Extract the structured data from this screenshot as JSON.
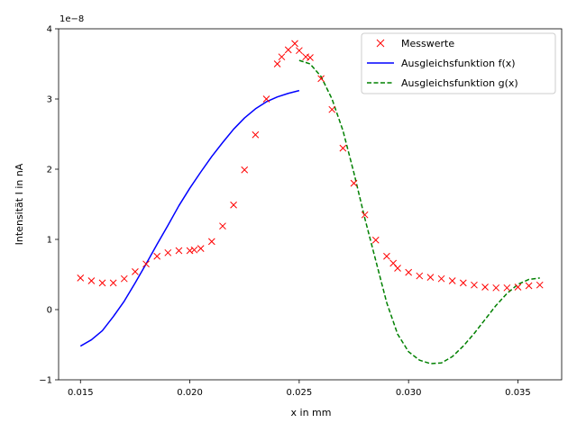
{
  "chart_data": {
    "type": "line",
    "xlabel": "x in mm",
    "ylabel": "Intensität I in nA",
    "offset_text": "1e−8",
    "xlim": [
      0.014,
      0.037
    ],
    "ylim": [
      -1.0,
      4.0
    ],
    "xticks": [
      0.015,
      0.02,
      0.025,
      0.03,
      0.035
    ],
    "xtick_labels": [
      "0.015",
      "0.020",
      "0.025",
      "0.030",
      "0.035"
    ],
    "yticks": [
      -1,
      0,
      1,
      2,
      3,
      4
    ],
    "ytick_labels": [
      "−1",
      "0",
      "1",
      "2",
      "3",
      "4"
    ],
    "grid": false,
    "legend_position": "top-right",
    "legend": [
      "Messwerte",
      "Ausgleichsfunktion f(x)",
      "Ausgleichsfunktion g(x)"
    ],
    "colors": {
      "measured": "#ff0000",
      "f": "#0000ff",
      "g": "#008000"
    },
    "measured": {
      "name": "Messwerte",
      "x": [
        0.015,
        0.0155,
        0.016,
        0.0165,
        0.017,
        0.0175,
        0.018,
        0.0185,
        0.019,
        0.0195,
        0.02,
        0.0202,
        0.0205,
        0.021,
        0.0215,
        0.022,
        0.0225,
        0.023,
        0.0235,
        0.024,
        0.0242,
        0.0245,
        0.0248,
        0.025,
        0.0253,
        0.0255,
        0.026,
        0.0265,
        0.027,
        0.0275,
        0.028,
        0.0285,
        0.029,
        0.0293,
        0.0295,
        0.03,
        0.0305,
        0.031,
        0.0315,
        0.032,
        0.0325,
        0.033,
        0.0335,
        0.034,
        0.0345,
        0.035,
        0.0355,
        0.036
      ],
      "y": [
        0.45,
        0.41,
        0.38,
        0.38,
        0.44,
        0.54,
        0.65,
        0.76,
        0.81,
        0.84,
        0.84,
        0.85,
        0.87,
        0.97,
        1.19,
        1.49,
        1.99,
        2.49,
        3.0,
        3.5,
        3.6,
        3.7,
        3.79,
        3.69,
        3.6,
        3.59,
        3.29,
        2.85,
        2.3,
        1.8,
        1.35,
        0.99,
        0.76,
        0.66,
        0.59,
        0.53,
        0.48,
        0.46,
        0.44,
        0.41,
        0.38,
        0.35,
        0.32,
        0.31,
        0.31,
        0.32,
        0.34,
        0.35
      ]
    },
    "fit_f": {
      "name": "Ausgleichsfunktion f(x)",
      "x": [
        0.015,
        0.0155,
        0.016,
        0.0165,
        0.017,
        0.0175,
        0.018,
        0.0185,
        0.019,
        0.0195,
        0.02,
        0.0205,
        0.021,
        0.0215,
        0.022,
        0.0225,
        0.023,
        0.0235,
        0.024,
        0.0245,
        0.025
      ],
      "y": [
        -0.52,
        -0.43,
        -0.3,
        -0.1,
        0.12,
        0.38,
        0.65,
        0.93,
        1.2,
        1.48,
        1.73,
        1.96,
        2.18,
        2.38,
        2.57,
        2.73,
        2.86,
        2.96,
        3.03,
        3.08,
        3.12
      ]
    },
    "fit_g": {
      "name": "Ausgleichsfunktion g(x)",
      "x": [
        0.025,
        0.0255,
        0.026,
        0.0265,
        0.027,
        0.0275,
        0.028,
        0.0285,
        0.029,
        0.0295,
        0.03,
        0.0305,
        0.031,
        0.0315,
        0.032,
        0.0325,
        0.033,
        0.0335,
        0.034,
        0.0345,
        0.035,
        0.0355,
        0.036
      ],
      "y": [
        3.55,
        3.5,
        3.32,
        3.0,
        2.55,
        1.95,
        1.3,
        0.7,
        0.1,
        -0.35,
        -0.6,
        -0.72,
        -0.77,
        -0.76,
        -0.67,
        -0.52,
        -0.34,
        -0.14,
        0.06,
        0.23,
        0.36,
        0.43,
        0.45
      ]
    }
  }
}
